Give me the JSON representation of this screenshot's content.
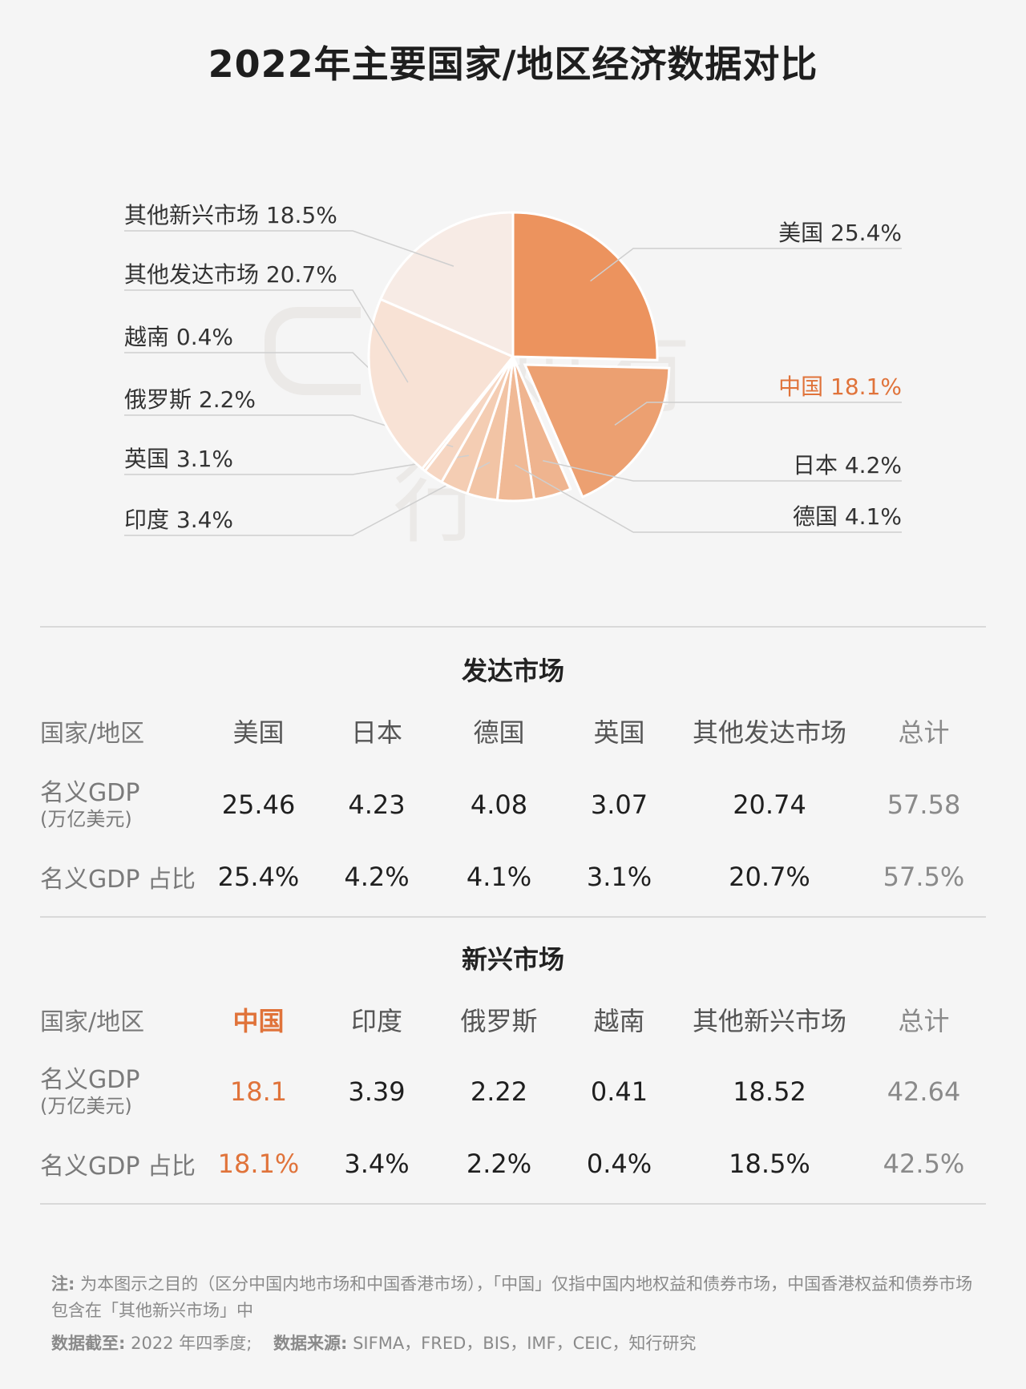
{
  "title": "2022年主要国家/地区经济数据对比",
  "chart_data": {
    "type": "pie",
    "slices": [
      {
        "label": "美国",
        "pct": "25.4%",
        "value": 25.4,
        "color": "#ec935e",
        "exploded": false,
        "highlight": false
      },
      {
        "label": "中国",
        "pct": "18.1%",
        "value": 18.1,
        "color": "#eca071",
        "exploded": true,
        "highlight": true
      },
      {
        "label": "日本",
        "pct": "4.2%",
        "value": 4.2,
        "color": "#efb48f",
        "exploded": false,
        "highlight": false
      },
      {
        "label": "德国",
        "pct": "4.1%",
        "value": 4.1,
        "color": "#f0b995",
        "exploded": false,
        "highlight": false
      },
      {
        "label": "印度",
        "pct": "3.4%",
        "value": 3.4,
        "color": "#f2c4a5",
        "exploded": false,
        "highlight": false
      },
      {
        "label": "英国",
        "pct": "3.1%",
        "value": 3.1,
        "color": "#f4cdb3",
        "exploded": false,
        "highlight": false
      },
      {
        "label": "俄罗斯",
        "pct": "2.2%",
        "value": 2.2,
        "color": "#f6d6c2",
        "exploded": false,
        "highlight": false
      },
      {
        "label": "越南",
        "pct": "0.4%",
        "value": 0.4,
        "color": "#f7ddcc",
        "exploded": false,
        "highlight": false
      },
      {
        "label": "其他发达市场",
        "pct": "20.7%",
        "value": 20.7,
        "color": "#f8e2d5",
        "exploded": false,
        "highlight": false
      },
      {
        "label": "其他新兴市场",
        "pct": "18.5%",
        "value": 18.5,
        "color": "#f7ebe5",
        "exploded": false,
        "highlight": false
      }
    ],
    "highlight_color": "#e0733a"
  },
  "watermark": "有知有行",
  "developed": {
    "section_title": "发达市场",
    "header": [
      "国家/地区",
      "美国",
      "日本",
      "德国",
      "英国",
      "其他发达市场",
      "总计"
    ],
    "gdp_label": "名义GDP",
    "gdp_unit": "(万亿美元)",
    "gdp_values": [
      "25.46",
      "4.23",
      "4.08",
      "3.07",
      "20.74",
      "57.58"
    ],
    "share_label": "名义GDP 占比",
    "share_values": [
      "25.4%",
      "4.2%",
      "4.1%",
      "3.1%",
      "20.7%",
      "57.5%"
    ]
  },
  "emerging": {
    "section_title": "新兴市场",
    "header": [
      "国家/地区",
      "中国",
      "印度",
      "俄罗斯",
      "越南",
      "其他新兴市场",
      "总计"
    ],
    "gdp_label": "名义GDP",
    "gdp_unit": "(万亿美元)",
    "gdp_values": [
      "18.1",
      "3.39",
      "2.22",
      "0.41",
      "18.52",
      "42.64"
    ],
    "share_label": "名义GDP 占比",
    "share_values": [
      "18.1%",
      "3.4%",
      "2.2%",
      "0.4%",
      "18.5%",
      "42.5%"
    ]
  },
  "notes": {
    "note_label": "注:",
    "note_text": "为本图示之目的（区分中国内地市场和中国香港市场），「中国」仅指中国内地权益和债券市场，中国香港权益和债券市场包含在「其他新兴市场」中",
    "cutoff_label": "数据截至:",
    "cutoff_text": "2022 年四季度;",
    "source_label": "数据来源:",
    "source_text": "SIFMA，FRED，BIS，IMF，CEIC，知行研究"
  }
}
